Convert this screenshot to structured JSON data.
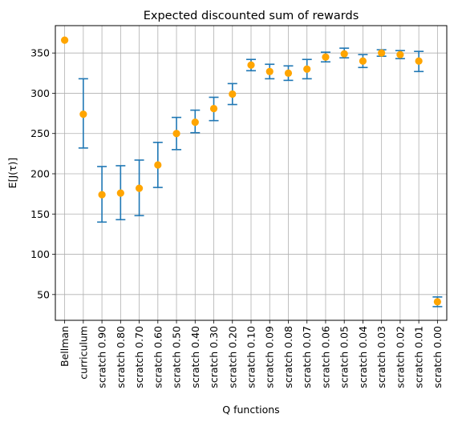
{
  "chart_data": {
    "type": "scatter",
    "title": "Expected discounted sum of rewards",
    "xlabel": "Q functions",
    "ylabel": "E[J(τ)]",
    "ylim": [
      18,
      384
    ],
    "yticks": [
      50,
      100,
      150,
      200,
      250,
      300,
      350
    ],
    "grid": true,
    "categories": [
      "Bellman",
      "curriculum",
      "scratch 0.90",
      "scratch 0.80",
      "scratch 0.70",
      "scratch 0.60",
      "scratch 0.50",
      "scratch 0.40",
      "scratch 0.30",
      "scratch 0.20",
      "scratch 0.10",
      "scratch 0.09",
      "scratch 0.08",
      "scratch 0.07",
      "scratch 0.06",
      "scratch 0.05",
      "scratch 0.04",
      "scratch 0.03",
      "scratch 0.02",
      "scratch 0.01",
      "scratch 0.00"
    ],
    "values": [
      366,
      274,
      174,
      176,
      182,
      211,
      250,
      264,
      281,
      299,
      335,
      327,
      325,
      330,
      345,
      349,
      340,
      350,
      348,
      340,
      41
    ],
    "error_low": [
      null,
      232,
      140,
      143,
      148,
      183,
      230,
      251,
      266,
      286,
      328,
      318,
      316,
      318,
      339,
      344,
      332,
      346,
      343,
      327,
      35
    ],
    "error_high": [
      null,
      318,
      209,
      210,
      217,
      239,
      270,
      279,
      295,
      312,
      342,
      336,
      334,
      342,
      351,
      356,
      348,
      354,
      353,
      352,
      47
    ],
    "point_color": "#FFA500",
    "errorbar_color": "#1F77B4",
    "grid_color": "#B0B0B0"
  }
}
